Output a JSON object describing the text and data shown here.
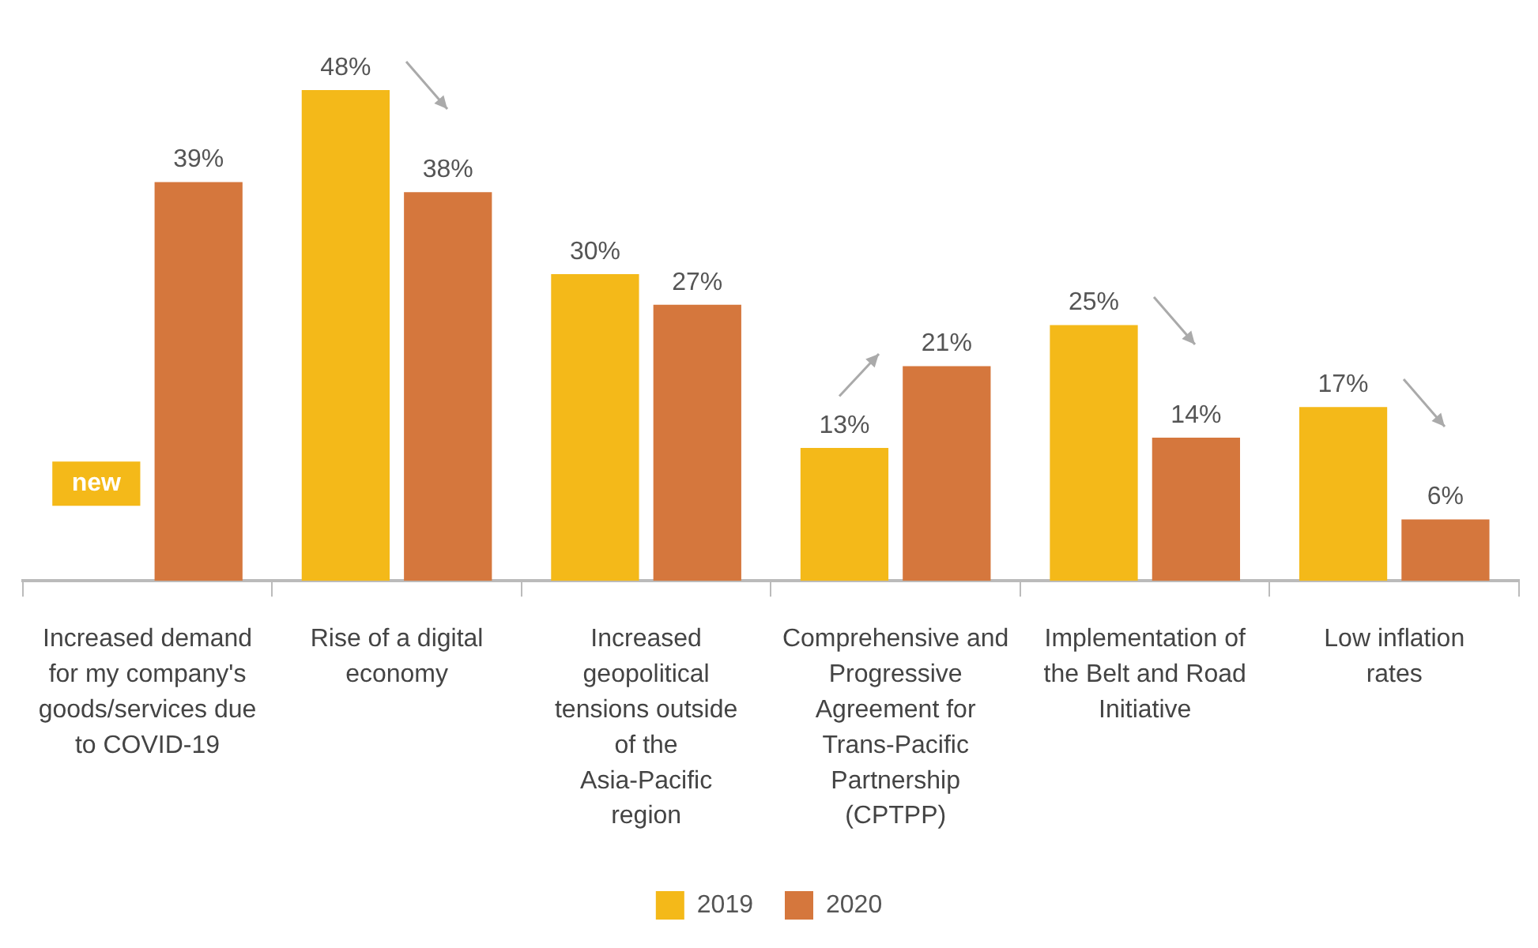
{
  "chart_data": {
    "type": "bar",
    "categories": [
      "Increased demand for my company's goods/services due to COVID-19",
      "Rise of a digital economy",
      "Increased geopolitical tensions outside of the Asia-Pacific region",
      "Comprehensive and Progressive Agreement for Trans-Pacific Partnership (CPTPP)",
      "Implementation of the Belt and Road Initiative",
      "Low inflation rates"
    ],
    "series": [
      {
        "name": "2019",
        "color": "#f4b919",
        "values": [
          null,
          48,
          30,
          13,
          25,
          17
        ],
        "value_labels": [
          null,
          "48%",
          "30%",
          "13%",
          "25%",
          "17%"
        ]
      },
      {
        "name": "2020",
        "color": "#d5773d",
        "values": [
          39,
          38,
          27,
          21,
          14,
          6
        ],
        "value_labels": [
          "39%",
          "38%",
          "27%",
          "21%",
          "14%",
          "6%"
        ]
      }
    ],
    "tick_labels": "x",
    "annotations": [
      "new"
    ],
    "legend": "bottom"
  }
}
